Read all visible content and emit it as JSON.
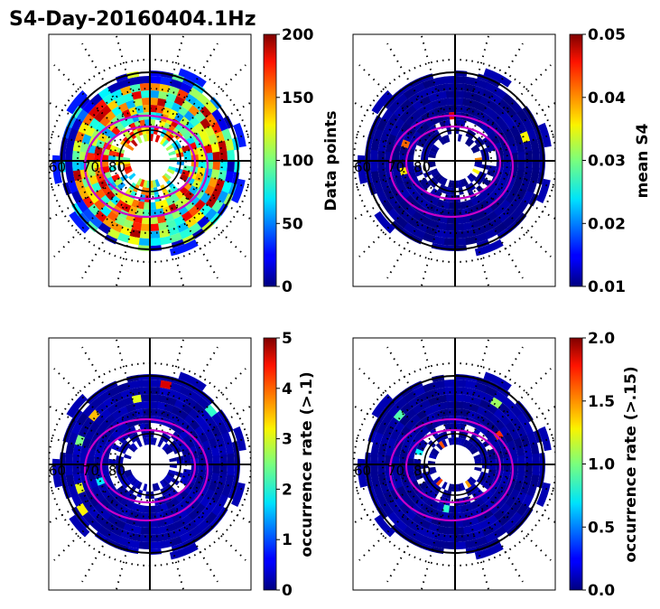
{
  "title": "S4-Day-20160404.1Hz",
  "chart_data": [
    {
      "type": "heatmap",
      "projection": "polar",
      "colorbar_label": "Data points",
      "colorbar_range": [
        0,
        200
      ],
      "colorbar_ticks": [
        "0",
        "50",
        "100",
        "150",
        "200"
      ],
      "colormap": "jet",
      "latitude_labels": [
        "60",
        "70",
        "80"
      ],
      "value_level": 0.62
    },
    {
      "type": "heatmap",
      "projection": "polar",
      "colorbar_label": "mean S4",
      "colorbar_range": [
        0.01,
        0.05
      ],
      "colorbar_ticks": [
        "0.01",
        "0.02",
        "0.03",
        "0.04",
        "0.05"
      ],
      "colormap": "jet",
      "latitude_labels": [
        "60",
        "70",
        "80"
      ],
      "value_level": 0.02
    },
    {
      "type": "heatmap",
      "projection": "polar",
      "colorbar_label": "occurrence rate (>.1)",
      "colorbar_range": [
        0,
        5
      ],
      "colorbar_ticks": [
        "0",
        "1",
        "2",
        "3",
        "4",
        "5"
      ],
      "colormap": "jet",
      "latitude_labels": [
        "60",
        "70",
        "80"
      ],
      "value_level": 0.04
    },
    {
      "type": "heatmap",
      "projection": "polar",
      "colorbar_label": "occurrence rate (>.15)",
      "colorbar_range": [
        0.0,
        2.0
      ],
      "colorbar_ticks": [
        "0.0",
        "0.5",
        "1.0",
        "1.5",
        "2.0"
      ],
      "colormap": "jet",
      "latitude_labels": [
        "60",
        "70",
        "80"
      ],
      "value_level": 0.03
    }
  ]
}
